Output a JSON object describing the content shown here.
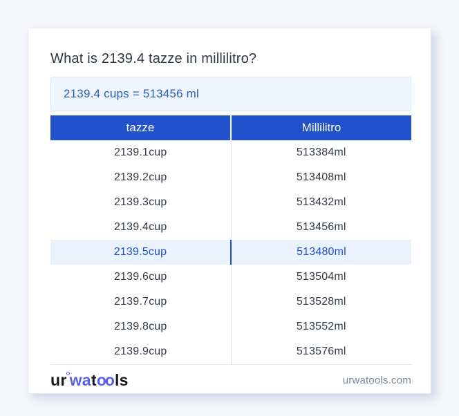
{
  "page": {
    "title": "What is 2139.4 tazze in millilitro?",
    "answer": "2139.4 cups = 513456 ml"
  },
  "table": {
    "headers": [
      "tazze",
      "Millilitro"
    ],
    "rows": [
      {
        "cup": "2139.1cup",
        "ml": "513384ml",
        "highlighted": false
      },
      {
        "cup": "2139.2cup",
        "ml": "513408ml",
        "highlighted": false
      },
      {
        "cup": "2139.3cup",
        "ml": "513432ml",
        "highlighted": false
      },
      {
        "cup": "2139.4cup",
        "ml": "513456ml",
        "highlighted": false
      },
      {
        "cup": "2139.5cup",
        "ml": "513480ml",
        "highlighted": true
      },
      {
        "cup": "2139.6cup",
        "ml": "513504ml",
        "highlighted": false
      },
      {
        "cup": "2139.7cup",
        "ml": "513528ml",
        "highlighted": false
      },
      {
        "cup": "2139.8cup",
        "ml": "513552ml",
        "highlighted": false
      },
      {
        "cup": "2139.9cup",
        "ml": "513576ml",
        "highlighted": false
      }
    ]
  },
  "footer": {
    "logo": {
      "part1": "ur",
      "part2": "wa",
      "part3": "t",
      "part4": "oo",
      "part5": "ls"
    },
    "domain": "urwatools.com"
  },
  "colors": {
    "page_bg": "#f4f6fa",
    "header_bg": "#2152cc",
    "highlight_bg": "#eaf2fd",
    "highlight_text": "#1d4ed8",
    "answer_bg": "#eef5fe",
    "answer_text": "#2a5cb8",
    "logo_blue": "#5a5fe8"
  }
}
